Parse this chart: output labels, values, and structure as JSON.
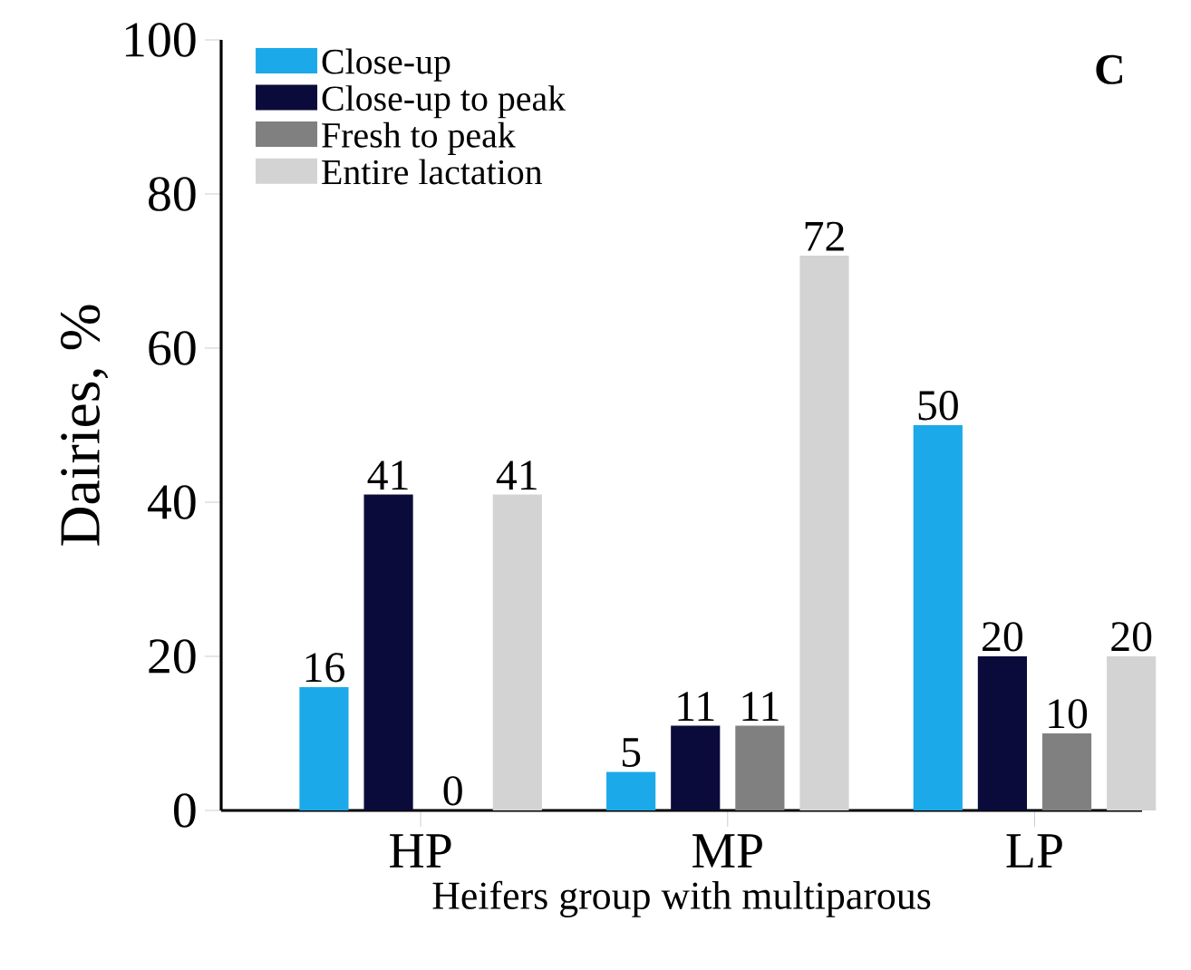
{
  "chart_data": {
    "type": "bar",
    "xlabel": "Heifers group with multiparous",
    "ylabel": "Dairies, %",
    "categories": [
      "HP",
      "MP",
      "LP"
    ],
    "series": [
      {
        "name": "Close-up",
        "color": "#1ca9e9",
        "values": [
          16,
          5,
          50
        ]
      },
      {
        "name": "Close-up to peak",
        "color": "#0b0b3b",
        "values": [
          41,
          11,
          20
        ]
      },
      {
        "name": "Fresh to peak",
        "color": "#808080",
        "values": [
          0,
          11,
          10
        ]
      },
      {
        "name": "Entire lactation",
        "color": "#d3d3d3",
        "values": [
          41,
          72,
          20
        ]
      }
    ],
    "ylim": [
      0,
      100
    ],
    "yticks": [
      0,
      20,
      40,
      60,
      80,
      100
    ],
    "grid": false,
    "legend": "top left",
    "data_labels": true,
    "annotations": [
      "C"
    ]
  }
}
